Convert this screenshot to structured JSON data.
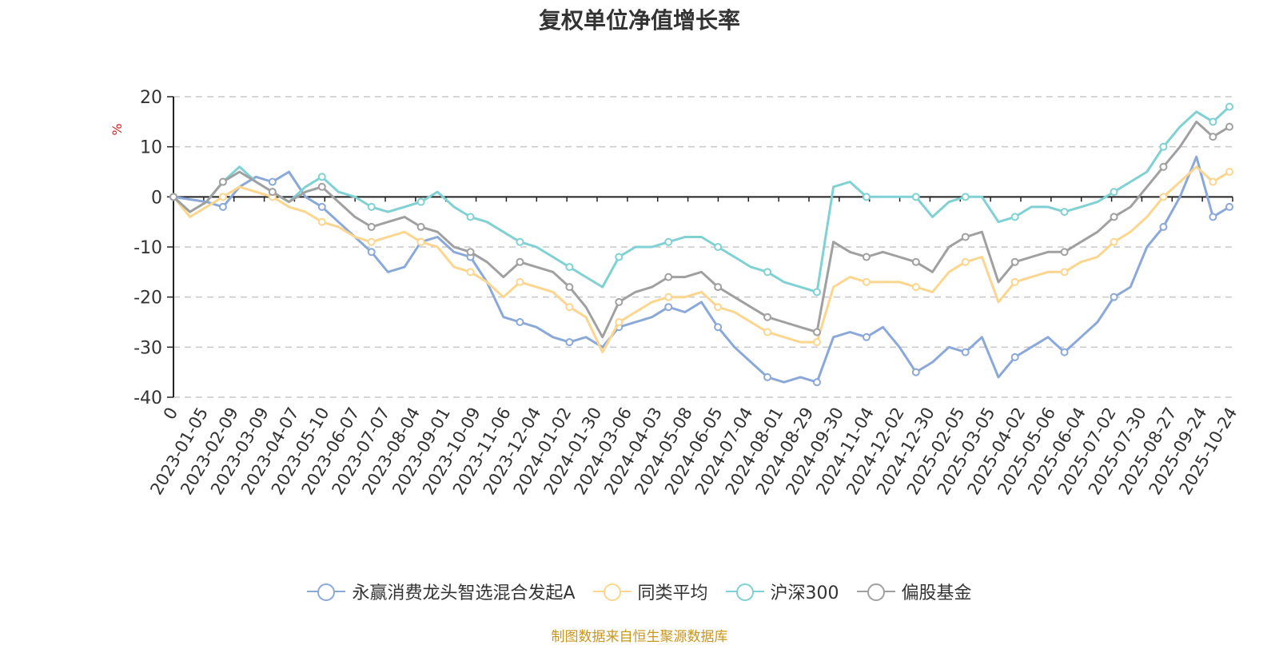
{
  "chart_data": {
    "type": "line",
    "title": "复权单位净值增长率",
    "ylabel": "%",
    "ylim": [
      -40,
      20
    ],
    "y_ticks": [
      20,
      10,
      0,
      -10,
      -20,
      -30,
      -40
    ],
    "x_tick_labels": [
      "0",
      "2023-01-05",
      "2023-02-09",
      "2023-03-09",
      "2023-04-07",
      "2023-05-10",
      "2023-06-07",
      "2023-07-07",
      "2023-08-04",
      "2023-09-01",
      "2023-10-09",
      "2023-11-06",
      "2023-12-04",
      "2024-01-02",
      "2024-01-30",
      "2024-03-06",
      "2024-04-03",
      "2024-05-08",
      "2024-06-05",
      "2024-07-04",
      "2024-08-01",
      "2024-08-29",
      "2024-09-30",
      "2024-11-04",
      "2024-12-02",
      "2024-12-30",
      "2025-02-05",
      "2025-03-05",
      "2025-04-02",
      "2025-05-06",
      "2025-06-04",
      "2025-07-02",
      "2025-07-30",
      "2025-08-27",
      "2025-09-24",
      "2025-10-24"
    ],
    "grid": "dashed-horizontal",
    "legend_position": "bottom",
    "series": [
      {
        "name": "永赢消费龙头智选混合发起A",
        "color": "#8aa8d8",
        "values": [
          0,
          -0.5,
          -1,
          -2,
          2,
          4,
          3,
          5,
          0,
          -2,
          -5,
          -8,
          -11,
          -15,
          -14,
          -9,
          -8,
          -11,
          -12,
          -17,
          -24,
          -25,
          -26,
          -28,
          -29,
          -28,
          -30,
          -26,
          -25,
          -24,
          -22,
          -23,
          -21,
          -26,
          -30,
          -33,
          -36,
          -37,
          -36,
          -37,
          -28,
          -27,
          -28,
          -26,
          -30,
          -35,
          -33,
          -30,
          -31,
          -28,
          -36,
          -32,
          -30,
          -28,
          -31,
          -28,
          -25,
          -20,
          -18,
          -10,
          -6,
          0,
          8,
          -4,
          -2
        ]
      },
      {
        "name": "同类平均",
        "color": "#fcd58e",
        "values": [
          0,
          -4,
          -2,
          0,
          2,
          1,
          0,
          -2,
          -3,
          -5,
          -6,
          -8,
          -9,
          -8,
          -7,
          -9,
          -10,
          -14,
          -15,
          -17,
          -20,
          -17,
          -18,
          -19,
          -22,
          -24,
          -31,
          -25,
          -23,
          -21,
          -20,
          -20,
          -19,
          -22,
          -23,
          -25,
          -27,
          -28,
          -29,
          -29,
          -18,
          -16,
          -17,
          -17,
          -17,
          -18,
          -19,
          -15,
          -13,
          -12,
          -21,
          -17,
          -16,
          -15,
          -15,
          -13,
          -12,
          -9,
          -7,
          -4,
          0,
          3,
          6,
          3,
          5
        ]
      },
      {
        "name": "沪深300",
        "color": "#7fd1d3",
        "values": [
          0,
          -3,
          -1,
          3,
          6,
          3,
          1,
          -1,
          2,
          4,
          1,
          0,
          -2,
          -3,
          -2,
          -1,
          1,
          -2,
          -4,
          -5,
          -7,
          -9,
          -10,
          -12,
          -14,
          -16,
          -18,
          -12,
          -10,
          -10,
          -9,
          -8,
          -8,
          -10,
          -12,
          -14,
          -15,
          -17,
          -18,
          -19,
          2,
          3,
          0,
          0,
          0,
          0,
          -4,
          -1,
          0,
          0,
          -5,
          -4,
          -2,
          -2,
          -3,
          -2,
          -1,
          1,
          3,
          5,
          10,
          14,
          17,
          15,
          18
        ]
      },
      {
        "name": "偏股基金",
        "color": "#a0a0a0",
        "values": [
          0,
          -3,
          -1,
          3,
          5,
          3,
          1,
          -1,
          1,
          2,
          -1,
          -4,
          -6,
          -5,
          -4,
          -6,
          -7,
          -10,
          -11,
          -13,
          -16,
          -13,
          -14,
          -15,
          -18,
          -22,
          -28,
          -21,
          -19,
          -18,
          -16,
          -16,
          -15,
          -18,
          -20,
          -22,
          -24,
          -25,
          -26,
          -27,
          -9,
          -11,
          -12,
          -11,
          -12,
          -13,
          -15,
          -10,
          -8,
          -7,
          -17,
          -13,
          -12,
          -11,
          -11,
          -9,
          -7,
          -4,
          -2,
          2,
          6,
          10,
          15,
          12,
          14
        ]
      }
    ]
  },
  "source_text": "制图数据来自恒生聚源数据库"
}
